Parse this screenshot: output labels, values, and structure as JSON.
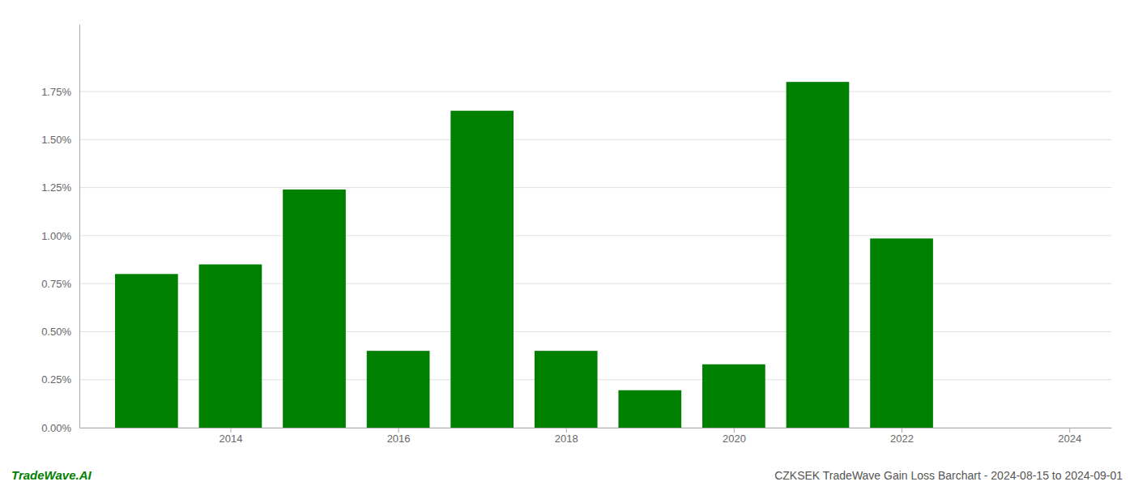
{
  "chart_data": {
    "type": "bar",
    "title": "CZKSEK TradeWave Gain Loss Barchart - 2024-08-15 to 2024-09-01",
    "annotations": [
      {
        "text": "TradeWave.AI"
      }
    ],
    "x": [
      2013,
      2014,
      2015,
      2016,
      2017,
      2018,
      2019,
      2020,
      2021,
      2022,
      2023
    ],
    "values": [
      0.008,
      0.0085,
      0.0124,
      0.004,
      0.0165,
      0.004,
      0.00195,
      0.0033,
      0.018,
      0.00985,
      0.0
    ],
    "color": "#008000",
    "xlim": [
      2012.2,
      2024.5
    ],
    "xticks": [
      2014,
      2016,
      2018,
      2020,
      2022,
      2024
    ],
    "ylim": [
      0,
      0.021
    ],
    "yticks": [
      {
        "value": 0.0,
        "label": "0.00%"
      },
      {
        "value": 0.0025,
        "label": "0.25%"
      },
      {
        "value": 0.005,
        "label": "0.50%"
      },
      {
        "value": 0.0075,
        "label": "0.75%"
      },
      {
        "value": 0.01,
        "label": "1.00%"
      },
      {
        "value": 0.0125,
        "label": "1.25%"
      },
      {
        "value": 0.015,
        "label": "1.50%"
      },
      {
        "value": 0.0175,
        "label": "1.75%"
      }
    ],
    "grid": true
  }
}
